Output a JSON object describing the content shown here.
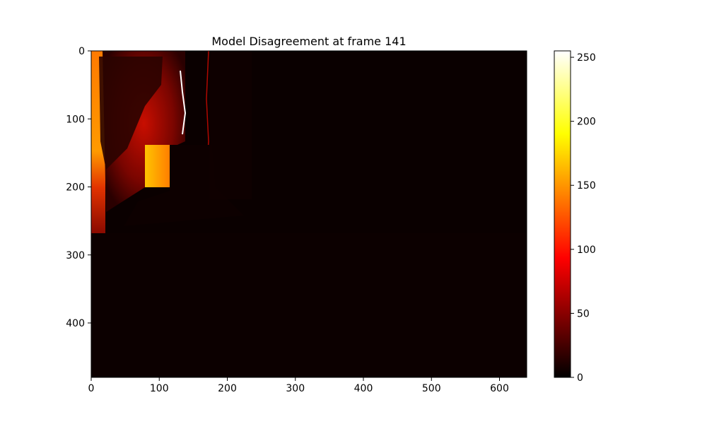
{
  "chart_data": {
    "type": "heatmap",
    "title": "Model Disagreement at frame 141",
    "xlabel": "",
    "ylabel": "",
    "xlim": [
      0,
      640
    ],
    "ylim": [
      480,
      0
    ],
    "x_ticks": [
      0,
      100,
      200,
      300,
      400,
      500,
      600
    ],
    "y_ticks": [
      0,
      100,
      200,
      300,
      400
    ],
    "colormap": "hot",
    "colorbar": {
      "range": [
        0,
        255
      ],
      "ticks": [
        0,
        50,
        100,
        150,
        200,
        250
      ]
    },
    "grid": false,
    "regions": [
      {
        "name": "left bright band",
        "x": [
          0,
          20
        ],
        "y": [
          0,
          270
        ],
        "value": 140
      },
      {
        "name": "orange block",
        "x": [
          80,
          120
        ],
        "y": [
          140,
          200
        ],
        "value": 200
      },
      {
        "name": "red upper-left region",
        "x": [
          20,
          140
        ],
        "y": [
          0,
          200
        ],
        "value": 60
      },
      {
        "name": "dark foreground",
        "x": [
          0,
          640
        ],
        "y": [
          200,
          480
        ],
        "value": 5
      }
    ],
    "colors": {
      "background": "#0a0000",
      "low": "#000000",
      "mid": "#ff0000",
      "high": "#ffff00",
      "max": "#ffffff"
    }
  }
}
